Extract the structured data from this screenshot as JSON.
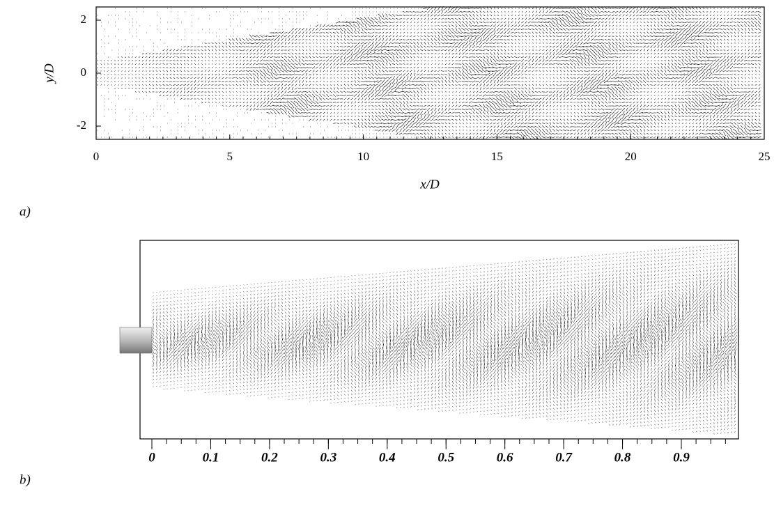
{
  "panel_a": {
    "label": "a)",
    "xlabel": "x/D",
    "ylabel": "y/D",
    "xticks": [
      0,
      5,
      10,
      15,
      20,
      25
    ],
    "yticks": [
      2,
      0,
      -2
    ]
  },
  "panel_b": {
    "label": "b)",
    "xticks": [
      0,
      0.1,
      0.2,
      0.3,
      0.4,
      0.5,
      0.6,
      0.7,
      0.8,
      0.9
    ]
  }
}
